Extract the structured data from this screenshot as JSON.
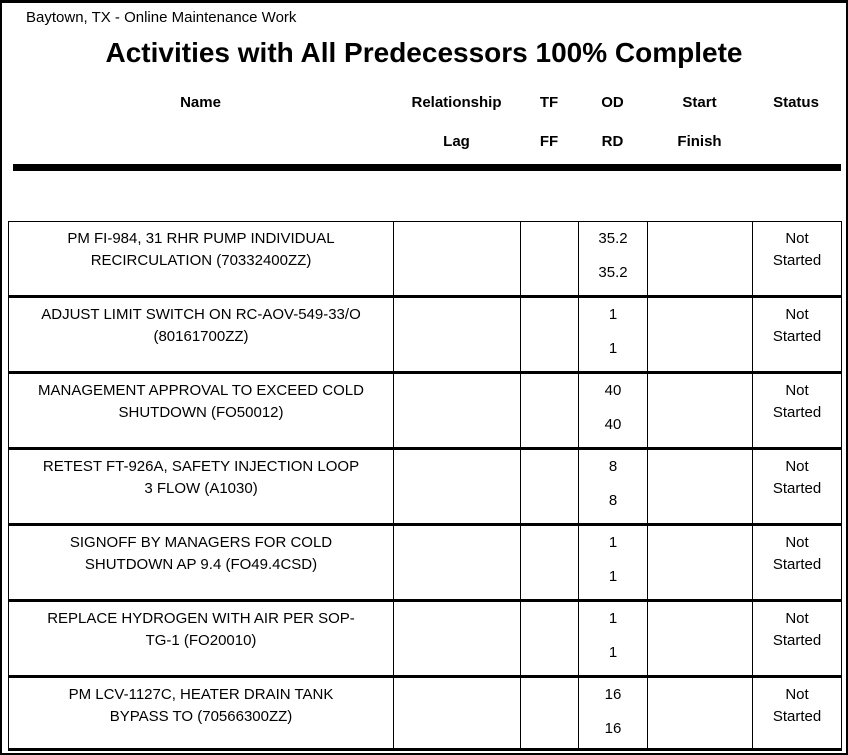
{
  "report": {
    "header_note": "Baytown, TX - Online Maintenance Work",
    "title": "Activities with All Predecessors 100% Complete"
  },
  "columns": {
    "name": {
      "line1": "Name",
      "line2": ""
    },
    "relationship": {
      "line1": "Relationship",
      "line2": "Lag"
    },
    "tf": {
      "line1": "TF",
      "line2": "FF"
    },
    "od": {
      "line1": "OD",
      "line2": "RD"
    },
    "start": {
      "line1": "Start",
      "line2": "Finish"
    },
    "status": {
      "line1": "Status",
      "line2": ""
    }
  },
  "rows": [
    {
      "name": "PM FI-984, 31 RHR PUMP INDIVIDUAL\nRECIRCULATION (70332400ZZ)",
      "relationship_lag": "",
      "tf_ff": "",
      "od": "35.2",
      "rd": "35.2",
      "start_finish": "",
      "status": "Not\nStarted"
    },
    {
      "name": "ADJUST LIMIT SWITCH ON RC-AOV-549-33/O\n(80161700ZZ)",
      "relationship_lag": "",
      "tf_ff": "",
      "od": "1",
      "rd": "1",
      "start_finish": "",
      "status": "Not\nStarted"
    },
    {
      "name": "MANAGEMENT APPROVAL TO EXCEED COLD\nSHUTDOWN (FO50012)",
      "relationship_lag": "",
      "tf_ff": "",
      "od": "40",
      "rd": "40",
      "start_finish": "",
      "status": "Not\nStarted"
    },
    {
      "name": "RETEST FT-926A, SAFETY INJECTION LOOP\n3 FLOW (A1030)",
      "relationship_lag": "",
      "tf_ff": "",
      "od": "8",
      "rd": "8",
      "start_finish": "",
      "status": "Not\nStarted"
    },
    {
      "name": "SIGNOFF BY MANAGERS FOR COLD\nSHUTDOWN  AP 9.4 (FO49.4CSD)",
      "relationship_lag": "",
      "tf_ff": "",
      "od": "1",
      "rd": "1",
      "start_finish": "",
      "status": "Not\nStarted"
    },
    {
      "name": "REPLACE HYDROGEN WITH AIR PER SOP-\nTG-1 (FO20010)",
      "relationship_lag": "",
      "tf_ff": "",
      "od": "1",
      "rd": "1",
      "start_finish": "",
      "status": "Not\nStarted"
    },
    {
      "name": "PM LCV-1127C, HEATER DRAIN TANK\nBYPASS TO (70566300ZZ)",
      "relationship_lag": "",
      "tf_ff": "",
      "od": "16",
      "rd": "16",
      "start_finish": "",
      "status": "Not\nStarted"
    }
  ],
  "colors": {
    "text": "#000000",
    "border": "#000000",
    "background": "#ffffff"
  }
}
